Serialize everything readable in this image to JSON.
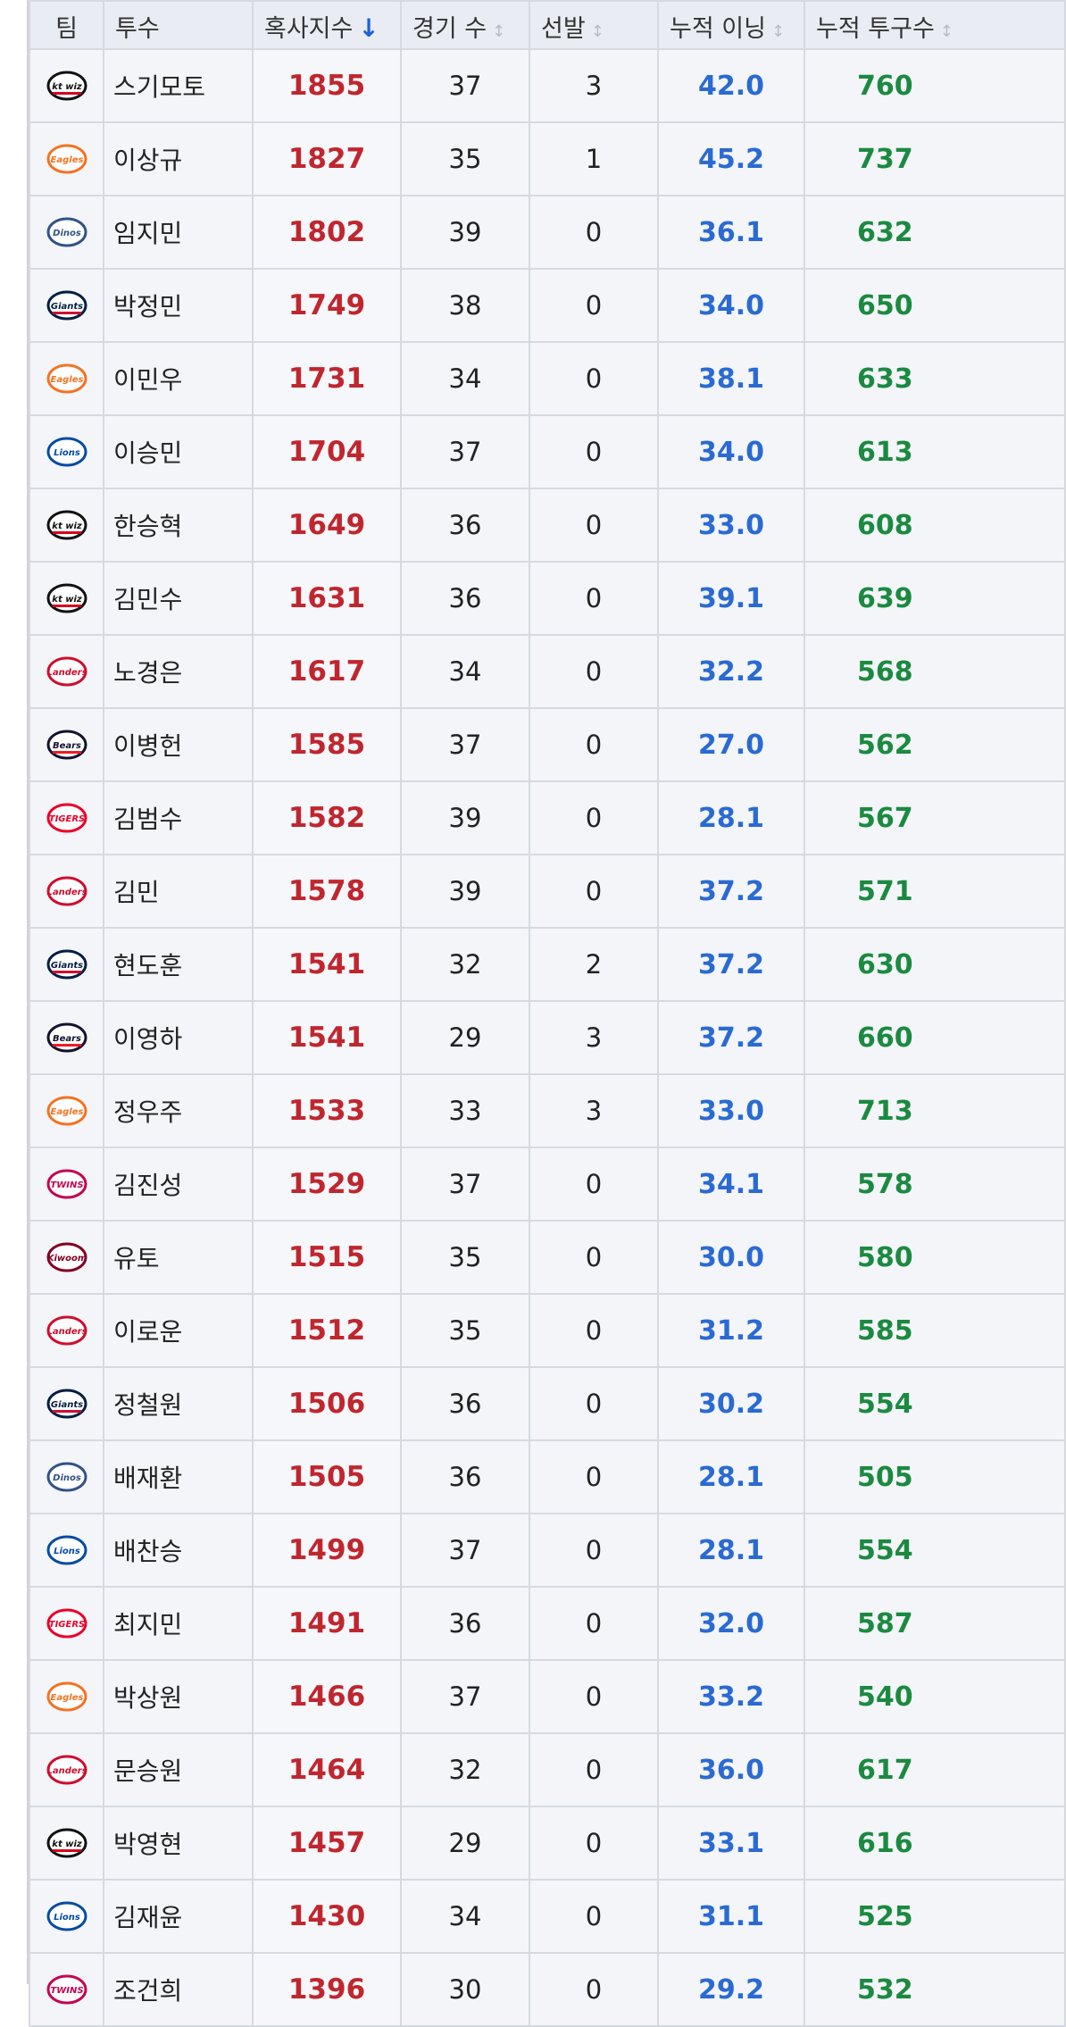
{
  "headers": {
    "team": "팀",
    "pitcher": "투수",
    "rank_index": "혹사지수",
    "games": "경기 수",
    "starts": "선발",
    "innings": "누적 이닝",
    "pitches": "누적 투구수"
  },
  "sort_icons": {
    "active": "↓",
    "inactive": "↕"
  },
  "team_logos": {
    "kt": {
      "icon": "kt-wiz-logo-icon",
      "text": "kt wiz",
      "color": "#111111",
      "accent": "#d6001c"
    },
    "eagles": {
      "icon": "eagles-logo-icon",
      "text": "Eagles",
      "color": "#f37321"
    },
    "dinos": {
      "icon": "dinos-logo-icon",
      "text": "Dinos",
      "color": "#315288"
    },
    "giants": {
      "icon": "giants-logo-icon",
      "text": "Giants",
      "color": "#041e42",
      "accent": "#d00f31"
    },
    "lions": {
      "icon": "lions-logo-icon",
      "text": "Lions",
      "color": "#074ca1"
    },
    "landers": {
      "icon": "landers-logo-icon",
      "text": "Landers",
      "color": "#ce0e2d"
    },
    "bears": {
      "icon": "bears-logo-icon",
      "text": "Bears",
      "color": "#131230",
      "accent": "#ed1c24"
    },
    "tigers": {
      "icon": "tigers-logo-icon",
      "text": "TIGERS",
      "color": "#ea0029"
    },
    "twins": {
      "icon": "twins-logo-icon",
      "text": "TWINS",
      "color": "#c30452"
    },
    "kiwoom": {
      "icon": "kiwoom-logo-icon",
      "text": "Kiwoom",
      "color": "#820024"
    }
  },
  "rows": [
    {
      "team": "kt",
      "name": "스기모토",
      "rank": "1855",
      "games": "37",
      "starts": "3",
      "innings": "42.0",
      "pitches": "760"
    },
    {
      "team": "eagles",
      "name": "이상규",
      "rank": "1827",
      "games": "35",
      "starts": "1",
      "innings": "45.2",
      "pitches": "737"
    },
    {
      "team": "dinos",
      "name": "임지민",
      "rank": "1802",
      "games": "39",
      "starts": "0",
      "innings": "36.1",
      "pitches": "632"
    },
    {
      "team": "giants",
      "name": "박정민",
      "rank": "1749",
      "games": "38",
      "starts": "0",
      "innings": "34.0",
      "pitches": "650"
    },
    {
      "team": "eagles",
      "name": "이민우",
      "rank": "1731",
      "games": "34",
      "starts": "0",
      "innings": "38.1",
      "pitches": "633"
    },
    {
      "team": "lions",
      "name": "이승민",
      "rank": "1704",
      "games": "37",
      "starts": "0",
      "innings": "34.0",
      "pitches": "613"
    },
    {
      "team": "kt",
      "name": "한승혁",
      "rank": "1649",
      "games": "36",
      "starts": "0",
      "innings": "33.0",
      "pitches": "608"
    },
    {
      "team": "kt",
      "name": "김민수",
      "rank": "1631",
      "games": "36",
      "starts": "0",
      "innings": "39.1",
      "pitches": "639"
    },
    {
      "team": "landers",
      "name": "노경은",
      "rank": "1617",
      "games": "34",
      "starts": "0",
      "innings": "32.2",
      "pitches": "568"
    },
    {
      "team": "bears",
      "name": "이병헌",
      "rank": "1585",
      "games": "37",
      "starts": "0",
      "innings": "27.0",
      "pitches": "562"
    },
    {
      "team": "tigers",
      "name": "김범수",
      "rank": "1582",
      "games": "39",
      "starts": "0",
      "innings": "28.1",
      "pitches": "567"
    },
    {
      "team": "landers",
      "name": "김민",
      "rank": "1578",
      "games": "39",
      "starts": "0",
      "innings": "37.2",
      "pitches": "571"
    },
    {
      "team": "giants",
      "name": "현도훈",
      "rank": "1541",
      "games": "32",
      "starts": "2",
      "innings": "37.2",
      "pitches": "630"
    },
    {
      "team": "bears",
      "name": "이영하",
      "rank": "1541",
      "games": "29",
      "starts": "3",
      "innings": "37.2",
      "pitches": "660"
    },
    {
      "team": "eagles",
      "name": "정우주",
      "rank": "1533",
      "games": "33",
      "starts": "3",
      "innings": "33.0",
      "pitches": "713"
    },
    {
      "team": "twins",
      "name": "김진성",
      "rank": "1529",
      "games": "37",
      "starts": "0",
      "innings": "34.1",
      "pitches": "578"
    },
    {
      "team": "kiwoom",
      "name": "유토",
      "rank": "1515",
      "games": "35",
      "starts": "0",
      "innings": "30.0",
      "pitches": "580"
    },
    {
      "team": "landers",
      "name": "이로운",
      "rank": "1512",
      "games": "35",
      "starts": "0",
      "innings": "31.2",
      "pitches": "585"
    },
    {
      "team": "giants",
      "name": "정철원",
      "rank": "1506",
      "games": "36",
      "starts": "0",
      "innings": "30.2",
      "pitches": "554"
    },
    {
      "team": "dinos",
      "name": "배재환",
      "rank": "1505",
      "games": "36",
      "starts": "0",
      "innings": "28.1",
      "pitches": "505"
    },
    {
      "team": "lions",
      "name": "배찬승",
      "rank": "1499",
      "games": "37",
      "starts": "0",
      "innings": "28.1",
      "pitches": "554"
    },
    {
      "team": "tigers",
      "name": "최지민",
      "rank": "1491",
      "games": "36",
      "starts": "0",
      "innings": "32.0",
      "pitches": "587"
    },
    {
      "team": "eagles",
      "name": "박상원",
      "rank": "1466",
      "games": "37",
      "starts": "0",
      "innings": "33.2",
      "pitches": "540"
    },
    {
      "team": "landers",
      "name": "문승원",
      "rank": "1464",
      "games": "32",
      "starts": "0",
      "innings": "36.0",
      "pitches": "617"
    },
    {
      "team": "kt",
      "name": "박영현",
      "rank": "1457",
      "games": "29",
      "starts": "0",
      "innings": "33.1",
      "pitches": "616"
    },
    {
      "team": "lions",
      "name": "김재윤",
      "rank": "1430",
      "games": "34",
      "starts": "0",
      "innings": "31.1",
      "pitches": "525"
    },
    {
      "team": "twins",
      "name": "조건희",
      "rank": "1396",
      "games": "30",
      "starts": "0",
      "innings": "29.2",
      "pitches": "532"
    }
  ]
}
